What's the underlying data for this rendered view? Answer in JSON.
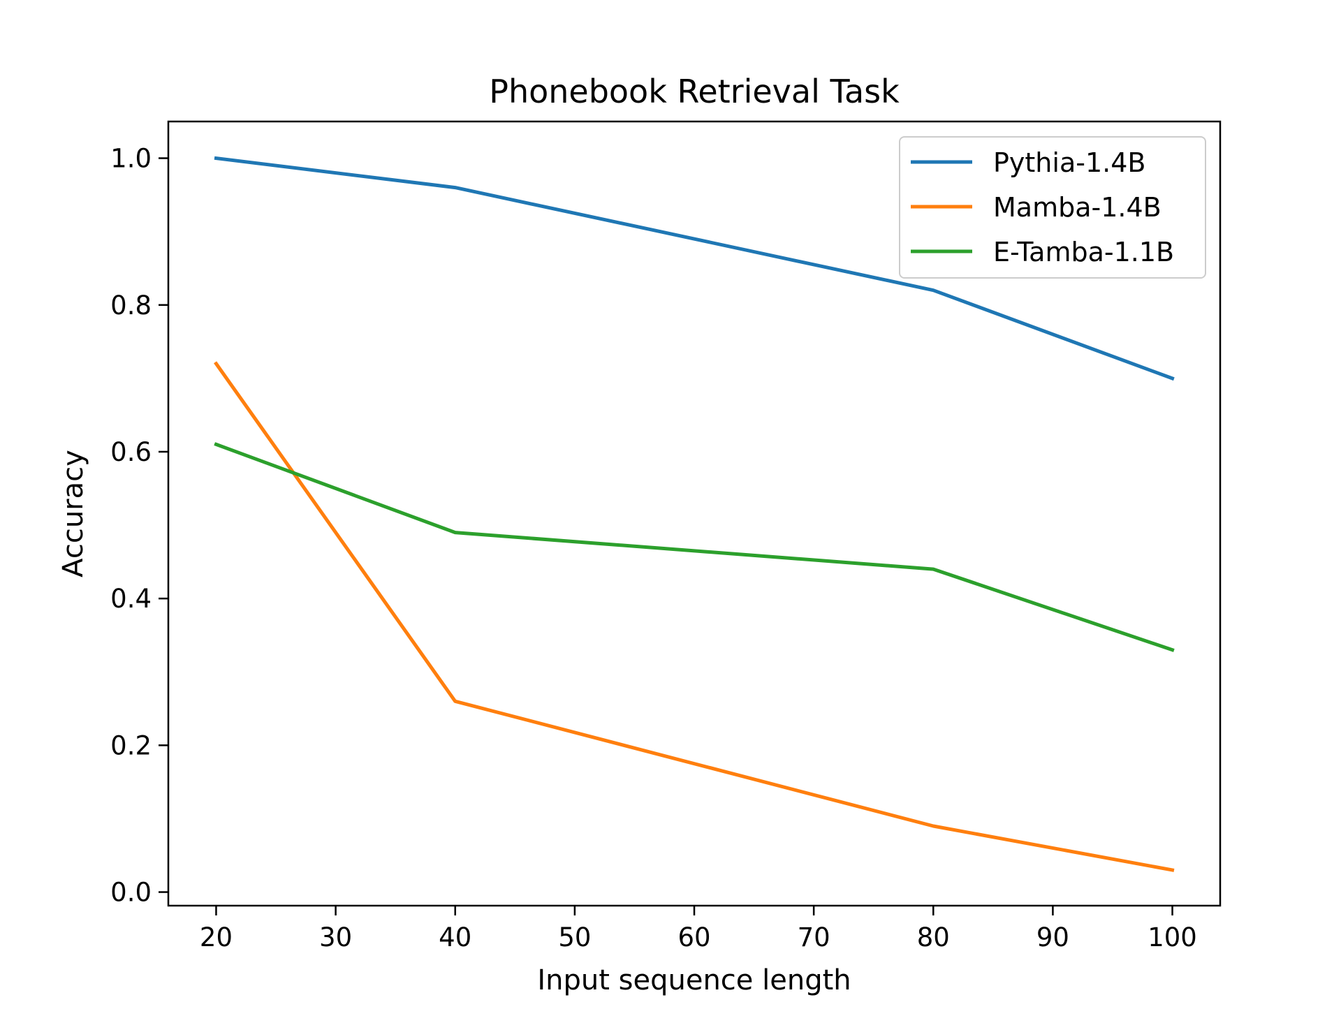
{
  "chart_data": {
    "type": "line",
    "title": "Phonebook Retrieval Task",
    "xlabel": "Input sequence length",
    "ylabel": "Accuracy",
    "x": [
      20,
      40,
      80,
      100
    ],
    "xlim": [
      16,
      104
    ],
    "ylim": [
      -0.0185,
      1.05
    ],
    "xticks": [
      20,
      30,
      40,
      50,
      60,
      70,
      80,
      90,
      100
    ],
    "xtick_labels": [
      "20",
      "30",
      "40",
      "50",
      "60",
      "70",
      "80",
      "90",
      "100"
    ],
    "yticks": [
      0.0,
      0.2,
      0.4,
      0.6,
      0.8,
      1.0
    ],
    "ytick_labels": [
      "0.0",
      "0.2",
      "0.4",
      "0.6",
      "0.8",
      "1.0"
    ],
    "grid": false,
    "legend_position": "top-right",
    "series": [
      {
        "name": "Pythia-1.4B",
        "color": "#1f77b4",
        "values": [
          1.0,
          0.96,
          0.82,
          0.7
        ]
      },
      {
        "name": "Mamba-1.4B",
        "color": "#ff7f0e",
        "values": [
          0.72,
          0.26,
          0.09,
          0.03
        ]
      },
      {
        "name": "E-Tamba-1.1B",
        "color": "#2ca02c",
        "values": [
          0.61,
          0.49,
          0.44,
          0.33
        ]
      }
    ]
  }
}
